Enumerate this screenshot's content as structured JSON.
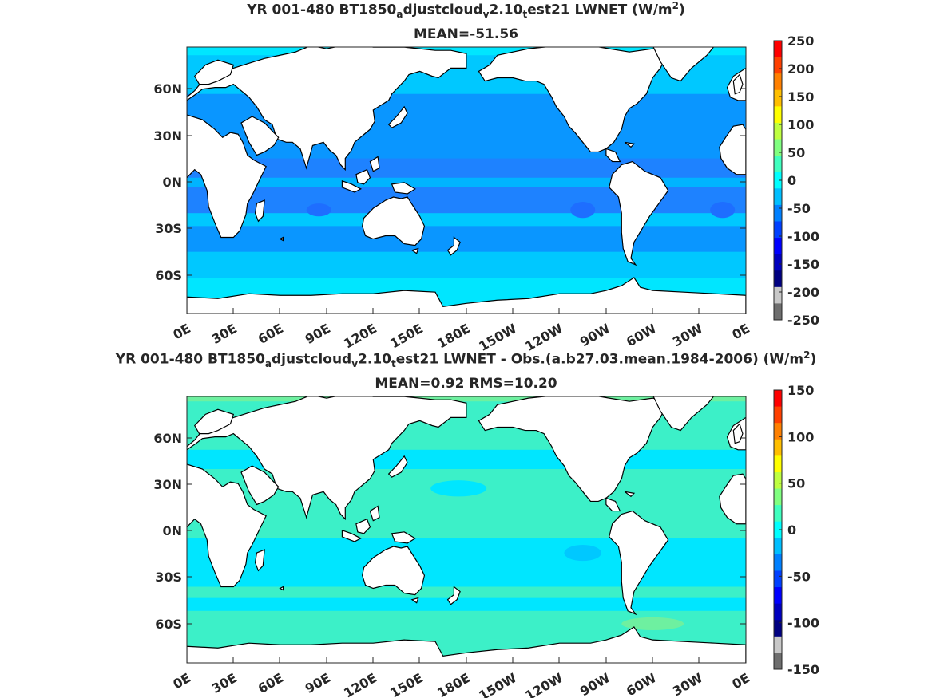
{
  "panels": [
    {
      "title_parts": {
        "p1": "YR 001-480 BT1850",
        "s1": "a",
        "p2": "djustcloud",
        "s2": "v",
        "p3": "2.10",
        "s3": "t",
        "p4": "est21  LWNET (W/m",
        "sup": "2",
        "p5": ")"
      },
      "subtitle": "MEAN=-51.56",
      "colorbar": {
        "ticks": [
          "250",
          "200",
          "150",
          "100",
          "50",
          "0",
          "-50",
          "-100",
          "-150",
          "-200",
          "-250"
        ],
        "colors": [
          "#ff0000",
          "#ff4000",
          "#ff8000",
          "#ffbf00",
          "#ffff00",
          "#bfff40",
          "#80ff80",
          "#40ffbf",
          "#00ffff",
          "#00bfff",
          "#0080ff",
          "#0040ff",
          "#0000ff",
          "#0000bf",
          "#000080",
          "#c8c8c8",
          "#6e6e6e"
        ]
      }
    },
    {
      "title_parts": {
        "p1": "YR 001-480 BT1850",
        "s1": "a",
        "p2": "djustcloud",
        "s2": "v",
        "p3": "2.10",
        "s3": "t",
        "p4": "est21 LWNET - Obs.(a.b27.03.mean.1984-2006) (W/m",
        "sup": "2",
        "p5": ")"
      },
      "subtitle": "MEAN=0.92 RMS=10.20",
      "colorbar": {
        "ticks": [
          "150",
          "100",
          "50",
          "0",
          "-50",
          "-100",
          "-150"
        ],
        "colors": [
          "#ff0000",
          "#ff4000",
          "#ff8000",
          "#ffbf00",
          "#ffff00",
          "#bfff40",
          "#80ff80",
          "#40ffbf",
          "#00ffff",
          "#00bfff",
          "#0080ff",
          "#0040ff",
          "#0000ff",
          "#0000bf",
          "#000080",
          "#c8c8c8",
          "#6e6e6e"
        ]
      }
    }
  ],
  "lat_ticks": [
    "60N",
    "30N",
    "0N",
    "30S",
    "60S"
  ],
  "lon_ticks": [
    "0E",
    "30E",
    "60E",
    "90E",
    "120E",
    "150E",
    "180E",
    "150W",
    "120W",
    "90W",
    "60W",
    "30W",
    "0E"
  ],
  "ocean_colors": {
    "panel1_base": "#00c8ff",
    "panel1_mid": "#0a96ff",
    "panel1_deep": "#1e6eff",
    "panel1_cyan": "#00e6ff",
    "panel2_base": "#3cf0c8",
    "panel2_cyan": "#00e6ff",
    "panel2_light": "#6ef0a0",
    "land": "#ffffff",
    "coast": "#000000"
  }
}
